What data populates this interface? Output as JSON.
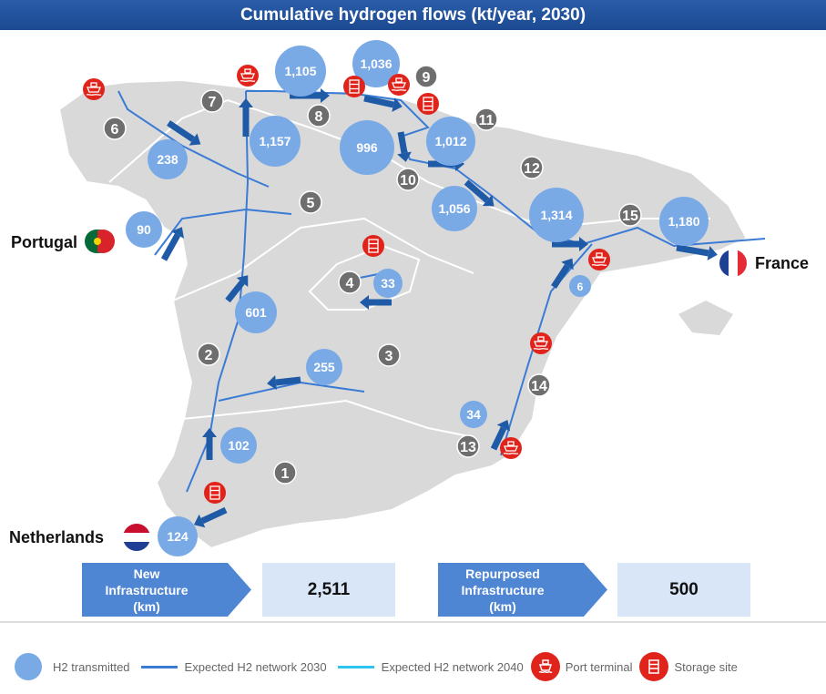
{
  "title": "Cumulative hydrogen flows (kt/year, 2030)",
  "countries": {
    "portugal": "Portugal",
    "france": "France",
    "netherlands": "Netherlands"
  },
  "flows": [
    "1,105",
    "1,036",
    "1,157",
    "996",
    "1,012",
    "238",
    "90",
    "1,056",
    "1,314",
    "1,180",
    "33",
    "601",
    "255",
    "6",
    "34",
    "102",
    "124"
  ],
  "regions": [
    "1",
    "2",
    "3",
    "4",
    "5",
    "6",
    "7",
    "8",
    "9",
    "10",
    "11",
    "12",
    "13",
    "14",
    "15"
  ],
  "summary": {
    "new_label_1": "New",
    "new_label_2": "Infrastructure",
    "new_label_3": "(km)",
    "new_value": "2,511",
    "rep_label_1": "Repurposed",
    "rep_label_2": "Infrastructure",
    "rep_label_3": "(km)",
    "rep_value": "500"
  },
  "legend": {
    "h2": "H2 transmitted",
    "net2030": "Expected H2 network 2030",
    "net2040": "Expected H2 network 2040",
    "port": "Port terminal",
    "storage": "Storage site"
  },
  "colors": {
    "header": "#1f4e96",
    "bubble": "#7aaae6",
    "network2030": "#3a7bd5",
    "network2040": "#2ec4f0",
    "arrow": "#1f5aa6",
    "region_badge": "#6e6e6e",
    "icon_red": "#e0241b",
    "land": "#d9d9d9"
  },
  "icons": {
    "port": "ship-icon",
    "storage": "storage-tank-icon"
  }
}
